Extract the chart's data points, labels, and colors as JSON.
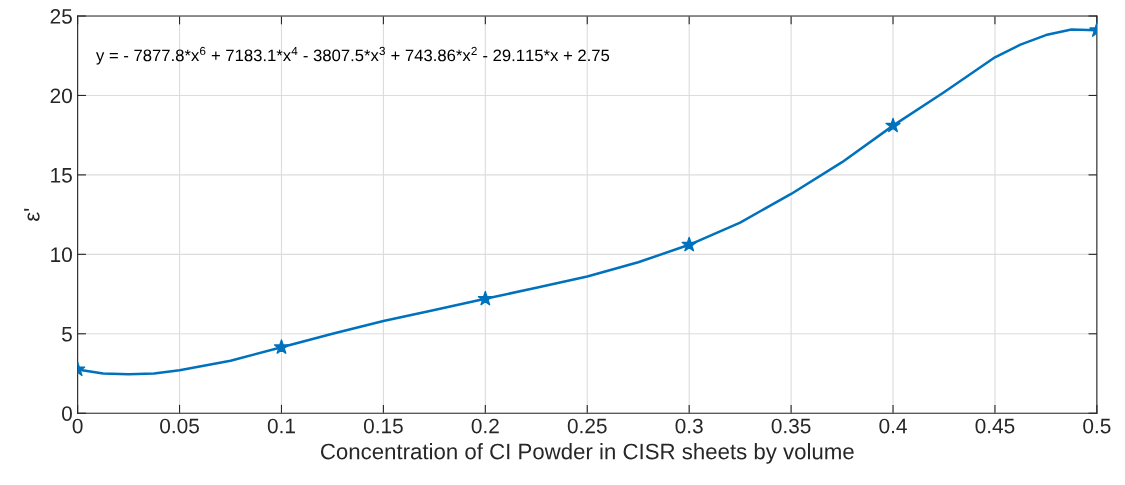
{
  "chart_data": {
    "type": "scatter",
    "xlabel": "Concentration of CI Powder in CISR sheets by volume",
    "ylabel": "ε'",
    "annotations": [
      "y = - 7877.8*x$^{6}$ + 7183.1*x$^{4}$ - 3807.5*x$^{3}$ + 743.86*x$^{2}$ - 29.115*x + 2.75"
    ],
    "x": [
      0,
      0.1,
      0.2,
      0.3,
      0.4,
      0.5
    ],
    "series": [
      {
        "type": "line",
        "color": "#0072bd",
        "marker": "none",
        "line_style": "solid",
        "x": [
          0,
          0.0125,
          0.025,
          0.0375,
          0.05,
          0.075,
          0.1,
          0.125,
          0.15,
          0.175,
          0.2,
          0.225,
          0.25,
          0.275,
          0.3,
          0.325,
          0.35,
          0.375,
          0.4,
          0.425,
          0.45,
          0.4625,
          0.475,
          0.4875,
          0.5
        ],
        "values": [
          2.75,
          2.5,
          2.45,
          2.5,
          2.7,
          3.3,
          4.15,
          5.0,
          5.8,
          6.5,
          7.2,
          7.9,
          8.6,
          9.5,
          10.6,
          12.0,
          13.8,
          15.8,
          18.1,
          20.2,
          22.4,
          23.2,
          23.8,
          24.15,
          24.1
        ]
      },
      {
        "color": "#0072bd",
        "marker": "star",
        "values": [
          2.75,
          4.15,
          7.2,
          10.6,
          18.1,
          24.1
        ]
      }
    ],
    "xlim": [
      0,
      0.5
    ],
    "xticks": [
      0,
      0.05,
      0.1,
      0.15,
      0.2,
      0.25,
      0.3,
      0.35,
      0.4,
      0.45,
      0.5
    ],
    "ylim": [
      0,
      25
    ],
    "yticks": [
      0,
      5,
      10,
      15,
      20,
      25
    ],
    "grid": true
  }
}
